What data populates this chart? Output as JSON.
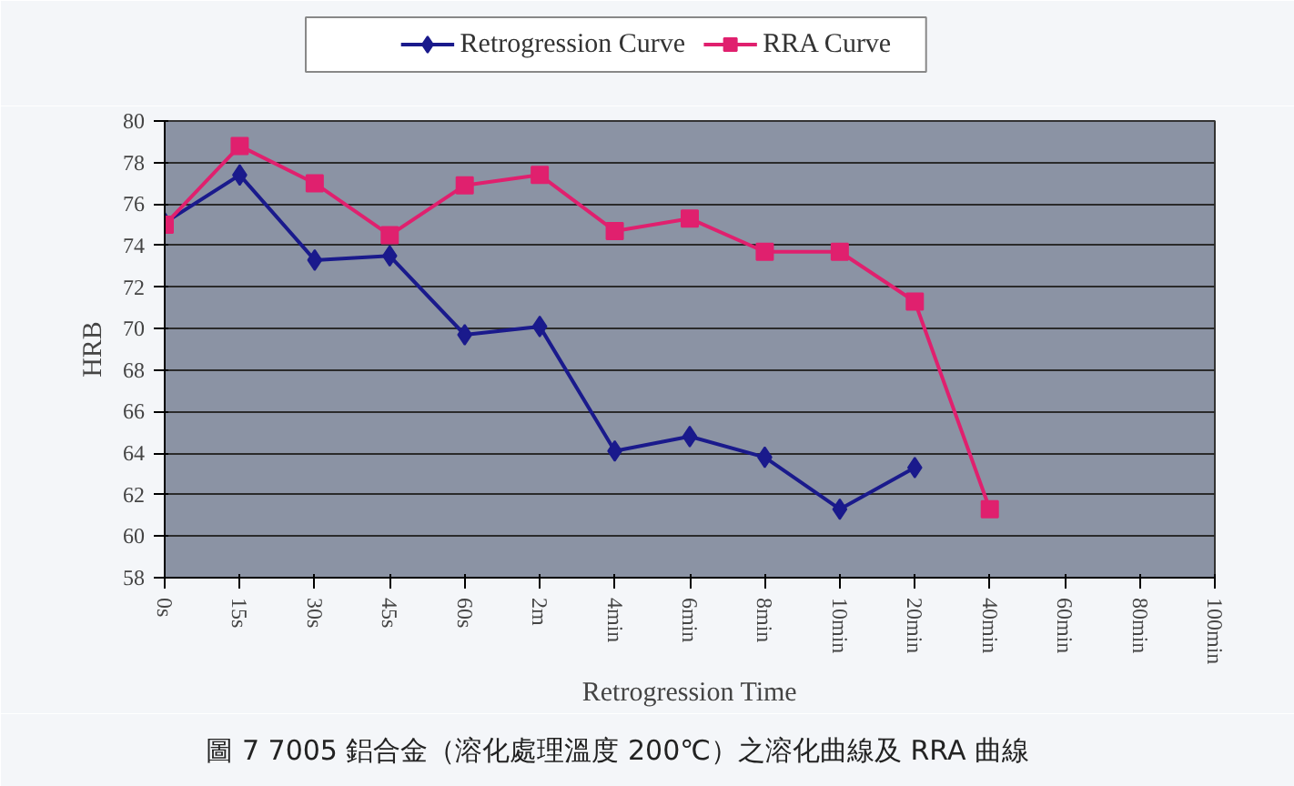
{
  "chart_data": {
    "type": "line",
    "xlabel": "Retrogression Time",
    "ylabel": "HRB",
    "categories": [
      "0s",
      "15s",
      "30s",
      "45s",
      "60s",
      "2m",
      "4min",
      "6min",
      "8min",
      "10min",
      "20min",
      "40min",
      "60min",
      "80min",
      "100min"
    ],
    "series": [
      {
        "name": "Retrogression Curve",
        "color": "#1a1a8c",
        "marker": "diamond",
        "values": [
          75.1,
          77.4,
          73.3,
          73.5,
          69.7,
          70.1,
          64.1,
          64.8,
          63.8,
          61.3,
          63.3,
          null,
          null,
          null,
          null
        ]
      },
      {
        "name": "RRA Curve",
        "color": "#e0206e",
        "marker": "square",
        "values": [
          75.0,
          78.8,
          77.0,
          74.5,
          76.9,
          77.4,
          74.7,
          75.3,
          73.7,
          73.7,
          71.3,
          61.3,
          null,
          null,
          null
        ]
      }
    ],
    "ylim": [
      58,
      80
    ],
    "yticks": [
      58,
      60,
      62,
      64,
      66,
      68,
      70,
      72,
      74,
      76,
      78,
      80
    ],
    "grid": "y",
    "legend": "top",
    "line_style": "solid",
    "annotations": [
      "圖 7 7005 鋁合金（溶化處理溫度 200℃）之溶化曲線及 RRA 曲線"
    ]
  }
}
